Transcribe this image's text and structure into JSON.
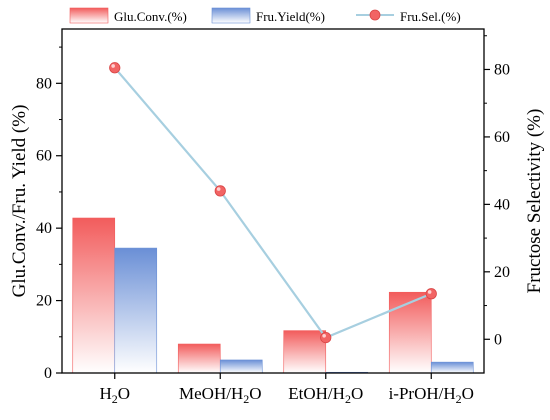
{
  "chart_data": {
    "type": "bar",
    "categories": [
      "H2O",
      "MeOH/H2O",
      "EtOH/H2O",
      "i-PrOH/H2O"
    ],
    "category_labels": [
      {
        "main": "H",
        "sub": "2",
        "rest": "O"
      },
      {
        "main": "MeOH/H",
        "sub": "2",
        "rest": "O"
      },
      {
        "main": "EtOH/H",
        "sub": "2",
        "rest": "O"
      },
      {
        "main": "i-PrOH/H",
        "sub": "2",
        "rest": "O"
      }
    ],
    "series": [
      {
        "name": "Glu.Conv.(%)",
        "type": "bar",
        "axis": "left",
        "color": "#f25c5c",
        "values": [
          42.8,
          8.0,
          11.7,
          22.3
        ]
      },
      {
        "name": "Fru.Yield(%)",
        "type": "bar",
        "axis": "left",
        "color": "#6a8fd6",
        "values": [
          34.5,
          3.6,
          0.2,
          3.0
        ]
      },
      {
        "name": "Fru.Sel.(%)",
        "type": "line",
        "axis": "right",
        "color": "#a7cfe0",
        "marker_color": "#f26464",
        "values": [
          80.5,
          44.0,
          0.5,
          13.5
        ]
      }
    ],
    "left_axis": {
      "label": "Glu.Conv./Fru. Yield (%)",
      "range": [
        0,
        95
      ],
      "ticks": [
        0,
        20,
        40,
        60,
        80
      ]
    },
    "right_axis": {
      "label": "Fructose Selectivity (%)",
      "range": [
        -10,
        92
      ],
      "ticks": [
        0,
        20,
        40,
        60,
        80
      ]
    },
    "legend_position": "top",
    "grid": false
  }
}
